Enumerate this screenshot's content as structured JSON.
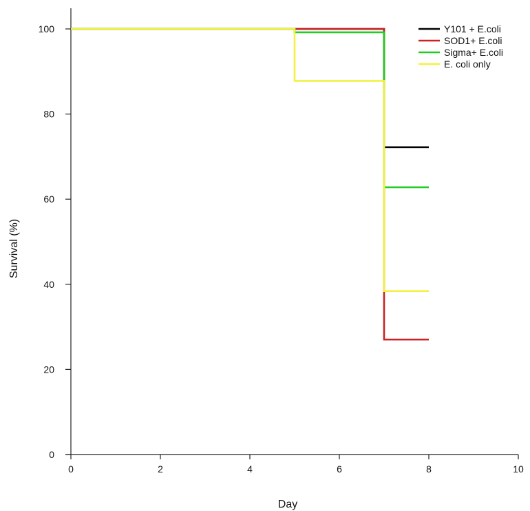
{
  "chart_data": {
    "type": "line",
    "xlabel": "Day",
    "ylabel": "Survival (%)",
    "xlim": [
      0,
      10
    ],
    "ylim": [
      0,
      100
    ],
    "x_ticks": [
      0,
      2,
      4,
      6,
      8,
      10
    ],
    "y_ticks": [
      0,
      20,
      40,
      60,
      80,
      100
    ],
    "grid": false,
    "legend_position": "top-right",
    "series": [
      {
        "name": "Y101 + E.coli",
        "color": "#000000",
        "points": [
          [
            0,
            100
          ],
          [
            5,
            100
          ],
          [
            7,
            100
          ],
          [
            7,
            72.2
          ],
          [
            8,
            72.2
          ]
        ]
      },
      {
        "name": "SOD1+ E.coli",
        "color": "#cc2222",
        "points": [
          [
            0,
            100
          ],
          [
            5,
            100
          ],
          [
            7,
            100
          ],
          [
            7,
            27
          ],
          [
            8,
            27
          ]
        ]
      },
      {
        "name": "Sigma+ E.coli",
        "color": "#22cc22",
        "points": [
          [
            0,
            100
          ],
          [
            5,
            100
          ],
          [
            5,
            99.2
          ],
          [
            7,
            99.2
          ],
          [
            7,
            62.8
          ],
          [
            8,
            62.8
          ]
        ]
      },
      {
        "name": "E. coli only",
        "color": "#f2f240",
        "points": [
          [
            0,
            100
          ],
          [
            5,
            100
          ],
          [
            5,
            87.8
          ],
          [
            7,
            87.8
          ],
          [
            7,
            38.4
          ],
          [
            8,
            38.4
          ]
        ]
      }
    ]
  }
}
